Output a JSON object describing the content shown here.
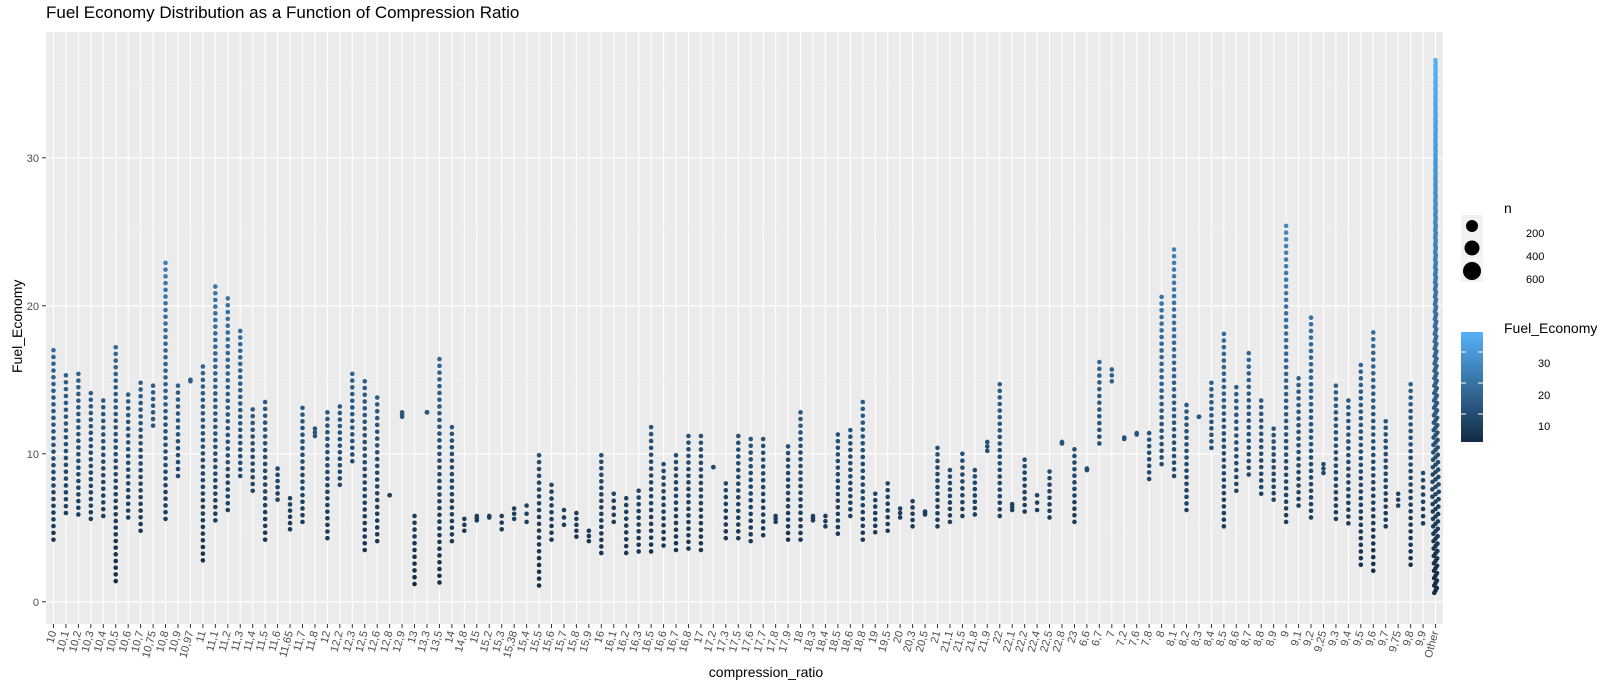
{
  "chart_data": {
    "type": "scatter",
    "title": "Fuel Economy Distribution as a Function of Compression Ratio",
    "xlabel": "compression_ratio",
    "ylabel": "Fuel_Economy",
    "ylim": [
      -1.5,
      38.5
    ],
    "yticks": [
      0,
      10,
      20,
      30
    ],
    "grid": true,
    "categories": [
      "10",
      "10,1",
      "10,2",
      "10,3",
      "10,4",
      "10,5",
      "10,6",
      "10,7",
      "10,75",
      "10,8",
      "10,9",
      "10,97",
      "11",
      "11,1",
      "11,2",
      "11,3",
      "11,4",
      "11,5",
      "11,6",
      "11,65",
      "11,7",
      "11,8",
      "12",
      "12,2",
      "12,3",
      "12,5",
      "12,6",
      "12,8",
      "12,9",
      "13",
      "13,3",
      "13,5",
      "14",
      "14,8",
      "15",
      "15,2",
      "15,3",
      "15,38",
      "15,4",
      "15,5",
      "15,6",
      "15,7",
      "15,8",
      "15,9",
      "16",
      "16,1",
      "16,2",
      "16,3",
      "16,5",
      "16,6",
      "16,7",
      "16,8",
      "17",
      "17,2",
      "17,3",
      "17,5",
      "17,6",
      "17,7",
      "17,8",
      "17,9",
      "18",
      "18,3",
      "18,4",
      "18,5",
      "18,6",
      "18,8",
      "19",
      "19,5",
      "20",
      "20,3",
      "20,5",
      "21",
      "21,1",
      "21,5",
      "21,8",
      "21,9",
      "22",
      "22,1",
      "22,2",
      "22,4",
      "22,5",
      "22,8",
      "23",
      "6,6",
      "6,7",
      "7",
      "7,2",
      "7,6",
      "7,8",
      "8",
      "8,1",
      "8,2",
      "8,3",
      "8,4",
      "8,5",
      "8,6",
      "8,7",
      "8,8",
      "8,9",
      "9",
      "9,1",
      "9,2",
      "9,25",
      "9,3",
      "9,4",
      "9,5",
      "9,6",
      "9,7",
      "9,75",
      "9,8",
      "9,9",
      "Other"
    ],
    "columns": [
      [
        4.2,
        17
      ],
      [
        6,
        15.3
      ],
      [
        5.9,
        15.4
      ],
      [
        5.6,
        14.1
      ],
      [
        5.8,
        13.6
      ],
      [
        1.4,
        17.2
      ],
      [
        5.7,
        14
      ],
      [
        4.8,
        14.8
      ],
      [
        11.9,
        14.6
      ],
      [
        5.6,
        22.9
      ],
      [
        8.5,
        14.6
      ],
      [
        14.9,
        15
      ],
      [
        2.8,
        15.9
      ],
      [
        5.5,
        21.3
      ],
      [
        6.2,
        20.5
      ],
      [
        8.5,
        18.3
      ],
      [
        7.5,
        13
      ],
      [
        4.2,
        13.5
      ],
      [
        6.9,
        9
      ],
      [
        4.9,
        7
      ],
      [
        5.4,
        13.1
      ],
      [
        11.2,
        11.7
      ],
      [
        4.3,
        12.8
      ],
      [
        7.9,
        13.2
      ],
      [
        9.5,
        15.4
      ],
      [
        3.5,
        14.9
      ],
      [
        4.1,
        13.8
      ],
      [
        7.2,
        7.2
      ],
      [
        12.5,
        12.8
      ],
      [
        1.2,
        5.8
      ],
      [
        12.8,
        12.8
      ],
      [
        1.3,
        16.4
      ],
      [
        4.1,
        11.8
      ],
      [
        4.8,
        5.6
      ],
      [
        5.5,
        5.8
      ],
      [
        5.7,
        5.8
      ],
      [
        4.9,
        5.8
      ],
      [
        5.6,
        6.3
      ],
      [
        5.4,
        6.5
      ],
      [
        1.1,
        9.9
      ],
      [
        4.2,
        7.9
      ],
      [
        5.2,
        6.2
      ],
      [
        4.4,
        6
      ],
      [
        4.1,
        4.8
      ],
      [
        3.3,
        9.9
      ],
      [
        5.4,
        7.3
      ],
      [
        3.3,
        7
      ],
      [
        3.4,
        7.5
      ],
      [
        3.4,
        11.8
      ],
      [
        3.8,
        9.3
      ],
      [
        3.5,
        9.9
      ],
      [
        3.6,
        11.2
      ],
      [
        3.5,
        11.2
      ],
      [
        9.1,
        9.1
      ],
      [
        4.3,
        8
      ],
      [
        4.3,
        11.2
      ],
      [
        4.1,
        11
      ],
      [
        4.5,
        11
      ],
      [
        5.4,
        5.8
      ],
      [
        4.2,
        10.5
      ],
      [
        4.2,
        12.8
      ],
      [
        5.5,
        5.8
      ],
      [
        5.1,
        5.8
      ],
      [
        4.6,
        11.3
      ],
      [
        5.8,
        11.6
      ],
      [
        4.2,
        13.5
      ],
      [
        4.7,
        7.3
      ],
      [
        4.8,
        8
      ],
      [
        5.7,
        6.3
      ],
      [
        5.1,
        6.8
      ],
      [
        5.9,
        6.1
      ],
      [
        5.1,
        10.4
      ],
      [
        5.4,
        8.9
      ],
      [
        5.8,
        10
      ],
      [
        5.9,
        8.9
      ],
      [
        10.2,
        10.8
      ],
      [
        5.8,
        14.7
      ],
      [
        6.2,
        6.6
      ],
      [
        6.1,
        9.6
      ],
      [
        6.2,
        7.2
      ],
      [
        5.7,
        8.8
      ],
      [
        10.7,
        10.8
      ],
      [
        5.4,
        10.3
      ],
      [
        8.9,
        9
      ],
      [
        10.7,
        16.2
      ],
      [
        14.9,
        15.7
      ],
      [
        11,
        11.1
      ],
      [
        11.3,
        11.4
      ],
      [
        8.3,
        11.4
      ],
      [
        9.3,
        20.6
      ],
      [
        8.5,
        23.8
      ],
      [
        6.2,
        13.3
      ],
      [
        12.5,
        12.5
      ],
      [
        10.4,
        14.8
      ],
      [
        5.1,
        18.1
      ],
      [
        7.5,
        14.5
      ],
      [
        8.6,
        16.8
      ],
      [
        7.3,
        13.6
      ],
      [
        6.9,
        11.7
      ],
      [
        5.4,
        25.4
      ],
      [
        6.5,
        15.1
      ],
      [
        5.7,
        19.2
      ],
      [
        8.7,
        9.3
      ],
      [
        5.6,
        14.6
      ],
      [
        5.3,
        13.6
      ],
      [
        2.5,
        16
      ],
      [
        2.1,
        18.2
      ],
      [
        5.1,
        12.2
      ],
      [
        6.5,
        7.3
      ],
      [
        2.5,
        14.7
      ],
      [
        5.3,
        8.7
      ],
      [
        0.6,
        36.6
      ]
    ],
    "columns_note_units": "Fuel_Economy [min, max] per category",
    "size_legend": {
      "title": "n",
      "values": [
        200,
        400,
        600
      ]
    },
    "color_legend": {
      "title": "Fuel_Economy",
      "ticks": [
        10,
        20,
        30
      ],
      "low_color": "#132B43",
      "high_color": "#56B1F7"
    }
  }
}
